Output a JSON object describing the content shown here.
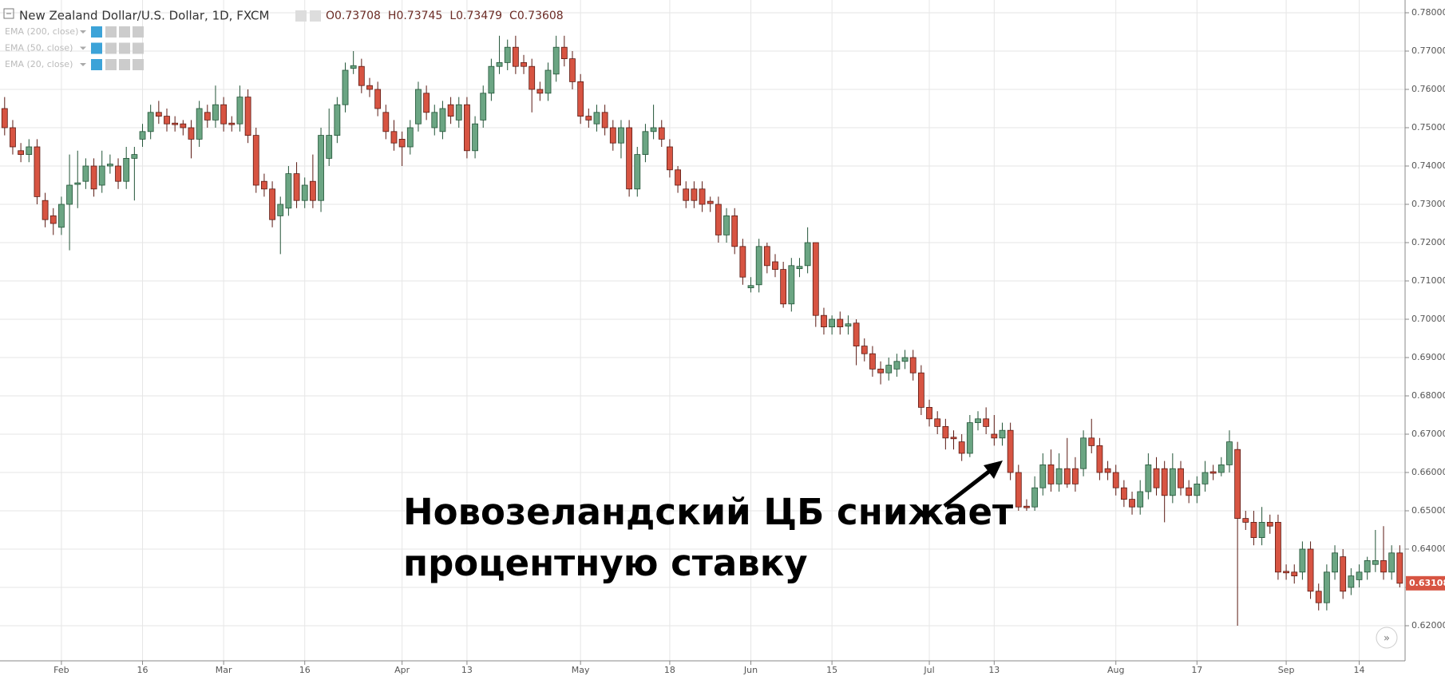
{
  "chart_data": {
    "type": "candlestick",
    "title": "New Zealand Dollar/U.S. Dollar, 1D, FXCM",
    "ohlc_legend": [
      "O0.73708",
      "H0.73745",
      "L0.73479",
      "C0.73608"
    ],
    "indicators": [
      "EMA (200, close)",
      "EMA (50, close)",
      "EMA (20, close)"
    ],
    "annotation": [
      "Новозеландский ЦБ снижает",
      "процентную ставку"
    ],
    "up_color": "#6ba583",
    "down_color": "#d75442",
    "grid": true,
    "ylim": [
      0.6115,
      0.7805
    ],
    "yticks": [
      {
        "value": 0.62,
        "label": "0.62000"
      },
      {
        "value": 0.63,
        "label": "0.63000"
      },
      {
        "value": 0.64,
        "label": "0.64000"
      },
      {
        "value": 0.65,
        "label": "0.65000"
      },
      {
        "value": 0.66,
        "label": "0.66000"
      },
      {
        "value": 0.67,
        "label": "0.67000"
      },
      {
        "value": 0.68,
        "label": "0.68000"
      },
      {
        "value": 0.69,
        "label": "0.69000"
      },
      {
        "value": 0.7,
        "label": "0.70000"
      },
      {
        "value": 0.71,
        "label": "0.71000"
      },
      {
        "value": 0.72,
        "label": "0.72000"
      },
      {
        "value": 0.73,
        "label": "0.73000"
      },
      {
        "value": 0.74,
        "label": "0.74000"
      },
      {
        "value": 0.75,
        "label": "0.75000"
      },
      {
        "value": 0.76,
        "label": "0.76000"
      },
      {
        "value": 0.77,
        "label": "0.77000"
      },
      {
        "value": 0.78,
        "label": "0.78000"
      }
    ],
    "xticks": [
      {
        "value": 7,
        "label": "Feb"
      },
      {
        "value": 17,
        "label": "16"
      },
      {
        "value": 27,
        "label": "Mar"
      },
      {
        "value": 37,
        "label": "16"
      },
      {
        "value": 49,
        "label": "Apr"
      },
      {
        "value": 57,
        "label": "13"
      },
      {
        "value": 71,
        "label": "May"
      },
      {
        "value": 82,
        "label": "18"
      },
      {
        "value": 92,
        "label": "Jun"
      },
      {
        "value": 102,
        "label": "15"
      },
      {
        "value": 114,
        "label": "Jul"
      },
      {
        "value": 122,
        "label": "13"
      },
      {
        "value": 137,
        "label": "Aug"
      },
      {
        "value": 147,
        "label": "17"
      },
      {
        "value": 158,
        "label": "Sep"
      },
      {
        "value": 167,
        "label": "14"
      }
    ],
    "open": [
      0.755,
      0.75,
      0.744,
      0.743,
      0.745,
      0.731,
      0.727,
      0.724,
      0.73,
      0.7352,
      0.736,
      0.74,
      0.735,
      0.74,
      0.74,
      0.736,
      0.742,
      0.747,
      0.749,
      0.754,
      0.753,
      0.7512,
      0.751,
      0.75,
      0.747,
      0.754,
      0.752,
      0.756,
      0.7512,
      0.751,
      0.758,
      0.748,
      0.736,
      0.734,
      0.727,
      0.729,
      0.738,
      0.731,
      0.736,
      0.731,
      0.742,
      0.748,
      0.756,
      0.7655,
      0.766,
      0.761,
      0.76,
      0.754,
      0.749,
      0.747,
      0.745,
      0.751,
      0.759,
      0.75,
      0.749,
      0.756,
      0.752,
      0.756,
      0.744,
      0.752,
      0.759,
      0.766,
      0.767,
      0.771,
      0.767,
      0.766,
      0.76,
      0.759,
      0.764,
      0.771,
      0.768,
      0.762,
      0.753,
      0.751,
      0.754,
      0.75,
      0.746,
      0.75,
      0.734,
      0.743,
      0.749,
      0.75,
      0.745,
      0.739,
      0.734,
      0.734,
      0.734,
      0.7308,
      0.73,
      0.722,
      0.727,
      0.719,
      0.7082,
      0.709,
      0.719,
      0.715,
      0.713,
      0.704,
      0.7132,
      0.714,
      0.72,
      0.701,
      0.698,
      0.7,
      0.6982,
      0.699,
      0.693,
      0.691,
      0.687,
      0.686,
      0.687,
      0.689,
      0.69,
      0.686,
      0.677,
      0.674,
      0.672,
      0.6692,
      0.668,
      0.665,
      0.673,
      0.674,
      0.67,
      0.669,
      0.671,
      0.66,
      0.6512,
      0.651,
      0.656,
      0.662,
      0.657,
      0.661,
      0.661,
      0.661,
      0.669,
      0.667,
      0.661,
      0.66,
      0.656,
      0.653,
      0.651,
      0.655,
      0.661,
      0.661,
      0.654,
      0.661,
      0.656,
      0.654,
      0.657,
      0.6602,
      0.66,
      0.662,
      0.666,
      0.648,
      0.647,
      0.643,
      0.647,
      0.647,
      0.6342,
      0.634,
      0.634,
      0.64,
      0.629,
      0.626,
      0.634,
      0.638,
      0.63,
      0.632,
      0.634,
      0.636,
      0.637,
      0.634,
      0.639
    ],
    "high": [
      0.758,
      0.752,
      0.746,
      0.747,
      0.747,
      0.733,
      0.729,
      0.732,
      0.743,
      0.744,
      0.742,
      0.742,
      0.744,
      0.743,
      0.742,
      0.745,
      0.745,
      0.751,
      0.756,
      0.757,
      0.755,
      0.753,
      0.752,
      0.752,
      0.757,
      0.756,
      0.761,
      0.758,
      0.753,
      0.761,
      0.76,
      0.75,
      0.738,
      0.736,
      0.732,
      0.74,
      0.741,
      0.737,
      0.743,
      0.75,
      0.755,
      0.758,
      0.767,
      0.77,
      0.768,
      0.763,
      0.762,
      0.756,
      0.752,
      0.749,
      0.752,
      0.762,
      0.761,
      0.756,
      0.757,
      0.758,
      0.758,
      0.758,
      0.753,
      0.761,
      0.768,
      0.774,
      0.773,
      0.774,
      0.769,
      0.768,
      0.762,
      0.767,
      0.774,
      0.774,
      0.77,
      0.764,
      0.755,
      0.756,
      0.756,
      0.752,
      0.752,
      0.752,
      0.745,
      0.751,
      0.756,
      0.752,
      0.747,
      0.74,
      0.736,
      0.736,
      0.736,
      0.732,
      0.732,
      0.729,
      0.729,
      0.721,
      0.711,
      0.721,
      0.72,
      0.717,
      0.715,
      0.716,
      0.716,
      0.724,
      0.72,
      0.703,
      0.701,
      0.702,
      0.701,
      0.7,
      0.695,
      0.693,
      0.689,
      0.69,
      0.691,
      0.692,
      0.692,
      0.688,
      0.679,
      0.676,
      0.674,
      0.671,
      0.67,
      0.675,
      0.676,
      0.677,
      0.675,
      0.673,
      0.673,
      0.662,
      0.653,
      0.659,
      0.665,
      0.666,
      0.665,
      0.669,
      0.664,
      0.671,
      0.674,
      0.669,
      0.663,
      0.662,
      0.658,
      0.655,
      0.658,
      0.665,
      0.664,
      0.663,
      0.665,
      0.663,
      0.658,
      0.659,
      0.663,
      0.662,
      0.664,
      0.671,
      0.668,
      0.65,
      0.65,
      0.651,
      0.649,
      0.649,
      0.636,
      0.636,
      0.642,
      0.642,
      0.631,
      0.636,
      0.641,
      0.64,
      0.635,
      0.636,
      0.638,
      0.645,
      0.646,
      0.641,
      0.641
    ],
    "low": [
      0.748,
      0.743,
      0.741,
      0.741,
      0.73,
      0.724,
      0.722,
      0.722,
      0.718,
      0.729,
      0.734,
      0.732,
      0.733,
      0.738,
      0.734,
      0.734,
      0.731,
      0.745,
      0.747,
      0.751,
      0.749,
      0.749,
      0.748,
      0.742,
      0.745,
      0.75,
      0.75,
      0.749,
      0.749,
      0.749,
      0.746,
      0.733,
      0.732,
      0.724,
      0.717,
      0.727,
      0.729,
      0.729,
      0.729,
      0.728,
      0.74,
      0.746,
      0.754,
      0.764,
      0.759,
      0.758,
      0.753,
      0.747,
      0.744,
      0.74,
      0.743,
      0.749,
      0.752,
      0.748,
      0.747,
      0.751,
      0.75,
      0.742,
      0.742,
      0.75,
      0.757,
      0.764,
      0.765,
      0.764,
      0.764,
      0.754,
      0.757,
      0.757,
      0.762,
      0.766,
      0.76,
      0.751,
      0.75,
      0.749,
      0.748,
      0.744,
      0.742,
      0.732,
      0.732,
      0.741,
      0.747,
      0.745,
      0.737,
      0.733,
      0.729,
      0.729,
      0.728,
      0.728,
      0.72,
      0.72,
      0.717,
      0.709,
      0.707,
      0.707,
      0.712,
      0.711,
      0.703,
      0.702,
      0.711,
      0.712,
      0.698,
      0.696,
      0.696,
      0.696,
      0.696,
      0.688,
      0.689,
      0.685,
      0.683,
      0.684,
      0.685,
      0.687,
      0.684,
      0.675,
      0.672,
      0.67,
      0.666,
      0.666,
      0.663,
      0.664,
      0.671,
      0.67,
      0.667,
      0.667,
      0.658,
      0.65,
      0.65,
      0.65,
      0.654,
      0.655,
      0.655,
      0.656,
      0.655,
      0.659,
      0.665,
      0.658,
      0.658,
      0.654,
      0.651,
      0.649,
      0.649,
      0.653,
      0.654,
      0.647,
      0.652,
      0.654,
      0.652,
      0.652,
      0.655,
      0.658,
      0.659,
      0.66,
      0.62,
      0.645,
      0.641,
      0.641,
      0.644,
      0.632,
      0.632,
      0.631,
      0.632,
      0.627,
      0.624,
      0.624,
      0.632,
      0.627,
      0.628,
      0.63,
      0.632,
      0.634,
      0.632,
      0.632,
      0.63
    ],
    "close": [
      0.75,
      0.745,
      0.743,
      0.745,
      0.732,
      0.726,
      0.725,
      0.73,
      0.735,
      0.7356,
      0.74,
      0.734,
      0.74,
      0.7405,
      0.736,
      0.742,
      0.743,
      0.749,
      0.754,
      0.753,
      0.751,
      0.7508,
      0.75,
      0.747,
      0.755,
      0.752,
      0.756,
      0.751,
      0.7508,
      0.758,
      0.748,
      0.735,
      0.734,
      0.726,
      0.73,
      0.738,
      0.731,
      0.735,
      0.731,
      0.748,
      0.748,
      0.756,
      0.765,
      0.7662,
      0.761,
      0.76,
      0.755,
      0.749,
      0.746,
      0.745,
      0.75,
      0.76,
      0.754,
      0.754,
      0.755,
      0.753,
      0.756,
      0.744,
      0.751,
      0.759,
      0.766,
      0.767,
      0.771,
      0.766,
      0.766,
      0.76,
      0.759,
      0.765,
      0.771,
      0.768,
      0.762,
      0.753,
      0.752,
      0.754,
      0.75,
      0.746,
      0.75,
      0.734,
      0.743,
      0.749,
      0.75,
      0.747,
      0.739,
      0.735,
      0.731,
      0.731,
      0.73,
      0.7302,
      0.722,
      0.727,
      0.719,
      0.711,
      0.7088,
      0.719,
      0.714,
      0.713,
      0.704,
      0.714,
      0.7138,
      0.72,
      0.701,
      0.698,
      0.7,
      0.698,
      0.6988,
      0.693,
      0.691,
      0.687,
      0.686,
      0.688,
      0.689,
      0.69,
      0.686,
      0.677,
      0.674,
      0.672,
      0.669,
      0.6688,
      0.665,
      0.673,
      0.674,
      0.672,
      0.669,
      0.671,
      0.66,
      0.651,
      0.6508,
      0.656,
      0.662,
      0.657,
      0.661,
      0.657,
      0.657,
      0.669,
      0.667,
      0.66,
      0.66,
      0.656,
      0.653,
      0.651,
      0.655,
      0.662,
      0.656,
      0.654,
      0.661,
      0.656,
      0.654,
      0.657,
      0.66,
      0.6598,
      0.662,
      0.668,
      0.648,
      0.647,
      0.643,
      0.647,
      0.646,
      0.634,
      0.6338,
      0.633,
      0.64,
      0.629,
      0.626,
      0.634,
      0.639,
      0.629,
      0.633,
      0.634,
      0.637,
      0.637,
      0.634,
      0.639,
      0.63108
    ]
  }
}
